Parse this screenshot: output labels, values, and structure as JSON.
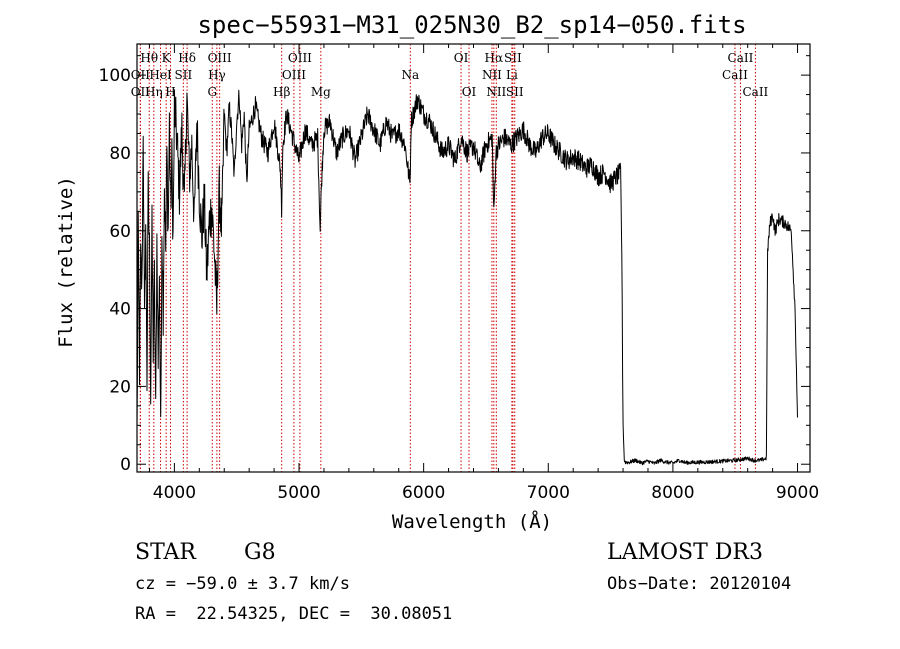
{
  "chart_data": {
    "type": "line",
    "title": "spec−55931−M31_025N30_B2_sp14−050.fits",
    "xlabel": "Wavelength (Å)",
    "ylabel": "Flux (relative)",
    "xlim": [
      3700,
      9100
    ],
    "ylim": [
      -2,
      108
    ],
    "xticks": [
      4000,
      5000,
      6000,
      7000,
      8000,
      9000
    ],
    "yticks": [
      0,
      20,
      40,
      60,
      80,
      100
    ],
    "grid": false,
    "series": [
      {
        "name": "flux",
        "x": [
          3700,
          3710,
          3720,
          3730,
          3740,
          3750,
          3760,
          3770,
          3780,
          3790,
          3800,
          3810,
          3820,
          3830,
          3840,
          3850,
          3860,
          3870,
          3880,
          3890,
          3900,
          3910,
          3920,
          3930,
          3940,
          3950,
          3960,
          3970,
          3980,
          3990,
          4000,
          4020,
          4040,
          4060,
          4080,
          4100,
          4120,
          4140,
          4160,
          4180,
          4200,
          4220,
          4240,
          4260,
          4280,
          4300,
          4320,
          4340,
          4360,
          4380,
          4400,
          4420,
          4440,
          4460,
          4480,
          4500,
          4520,
          4540,
          4560,
          4580,
          4600,
          4650,
          4700,
          4750,
          4800,
          4850,
          4860,
          4870,
          4900,
          4950,
          5000,
          5050,
          5100,
          5150,
          5170,
          5180,
          5200,
          5250,
          5300,
          5350,
          5400,
          5450,
          5500,
          5550,
          5600,
          5650,
          5700,
          5750,
          5800,
          5850,
          5890,
          5900,
          5950,
          6000,
          6050,
          6100,
          6150,
          6200,
          6250,
          6300,
          6350,
          6400,
          6450,
          6500,
          6550,
          6563,
          6580,
          6600,
          6650,
          6700,
          6750,
          6800,
          6850,
          6900,
          6950,
          7000,
          7050,
          7100,
          7150,
          7200,
          7250,
          7300,
          7350,
          7400,
          7450,
          7500,
          7550,
          7580,
          7590,
          7600,
          7610,
          7620,
          7650,
          7700,
          7750,
          7800,
          7850,
          7900,
          7950,
          8000,
          8050,
          8100,
          8200,
          8300,
          8400,
          8500,
          8600,
          8650,
          8700,
          8750,
          8760,
          8780,
          8800,
          8820,
          8850,
          8900,
          8950,
          8980,
          9000
        ],
        "y": [
          8,
          58,
          25,
          52,
          45,
          88,
          35,
          62,
          22,
          70,
          55,
          18,
          60,
          30,
          48,
          12,
          58,
          26,
          50,
          6,
          62,
          40,
          72,
          55,
          80,
          60,
          88,
          66,
          78,
          58,
          92,
          84,
          70,
          86,
          66,
          95,
          74,
          82,
          62,
          88,
          70,
          58,
          68,
          48,
          62,
          66,
          55,
          40,
          70,
          60,
          90,
          80,
          92,
          85,
          74,
          88,
          95,
          82,
          90,
          72,
          86,
          92,
          84,
          80,
          88,
          76,
          66,
          82,
          90,
          84,
          78,
          86,
          82,
          84,
          60,
          72,
          86,
          88,
          80,
          84,
          86,
          78,
          84,
          90,
          86,
          82,
          88,
          84,
          86,
          82,
          72,
          88,
          94,
          90,
          88,
          84,
          80,
          82,
          78,
          84,
          80,
          82,
          76,
          82,
          84,
          64,
          80,
          82,
          84,
          82,
          84,
          86,
          82,
          80,
          84,
          85,
          82,
          80,
          78,
          79,
          78,
          76,
          77,
          74,
          75,
          72,
          74,
          75,
          55,
          10,
          1,
          0.5,
          0.5,
          1,
          0.3,
          0.8,
          0.2,
          1,
          0.5,
          0.3,
          1,
          0.4,
          0.5,
          0.6,
          0.8,
          1,
          1.5,
          1,
          1,
          1.5,
          55,
          62,
          64,
          60,
          63,
          62,
          60,
          40,
          12
        ]
      }
    ],
    "line_markers": [
      {
        "label": "Hθ",
        "x": 3798,
        "row": 0
      },
      {
        "label": "OII",
        "x": 3727,
        "row": 1
      },
      {
        "label": "OII",
        "x": 3727,
        "row": 2
      },
      {
        "label": "K",
        "x": 3934,
        "row": 0
      },
      {
        "label": "HeI",
        "x": 3889,
        "row": 1
      },
      {
        "label": "Hη",
        "x": 3835,
        "row": 2
      },
      {
        "label": "Hδ",
        "x": 4102,
        "row": 0
      },
      {
        "label": "SII",
        "x": 4072,
        "row": 1
      },
      {
        "label": "H",
        "x": 3969,
        "row": 2
      },
      {
        "label": "OIII",
        "x": 4363,
        "row": 0
      },
      {
        "label": "Hγ",
        "x": 4341,
        "row": 1
      },
      {
        "label": "G",
        "x": 4304,
        "row": 2
      },
      {
        "label": "OIII",
        "x": 5007,
        "row": 0
      },
      {
        "label": "OIII",
        "x": 4959,
        "row": 1
      },
      {
        "label": "Hβ",
        "x": 4861,
        "row": 2
      },
      {
        "label": "Mg",
        "x": 5175,
        "row": 2
      },
      {
        "label": "Na",
        "x": 5893,
        "row": 1
      },
      {
        "label": "OI",
        "x": 6300,
        "row": 0
      },
      {
        "label": "OI",
        "x": 6364,
        "row": 2
      },
      {
        "label": "Hα",
        "x": 6563,
        "row": 0
      },
      {
        "label": "SII",
        "x": 6716,
        "row": 0
      },
      {
        "label": "NII",
        "x": 6548,
        "row": 1
      },
      {
        "label": "Li",
        "x": 6708,
        "row": 1
      },
      {
        "label": "NII",
        "x": 6583,
        "row": 2
      },
      {
        "label": "SII",
        "x": 6731,
        "row": 2
      },
      {
        "label": "CaII",
        "x": 8542,
        "row": 0
      },
      {
        "label": "CaII",
        "x": 8498,
        "row": 1
      },
      {
        "label": "CaII",
        "x": 8662,
        "row": 2
      }
    ]
  },
  "info": {
    "object_class": "STAR",
    "subclass": "G8",
    "survey": "LAMOST DR3",
    "redshift": "cz = −59.0 ± 3.7 km/s",
    "obs_date": "Obs−Date: 20120104",
    "coords": "RA =  22.54325, DEC =  30.08051"
  }
}
